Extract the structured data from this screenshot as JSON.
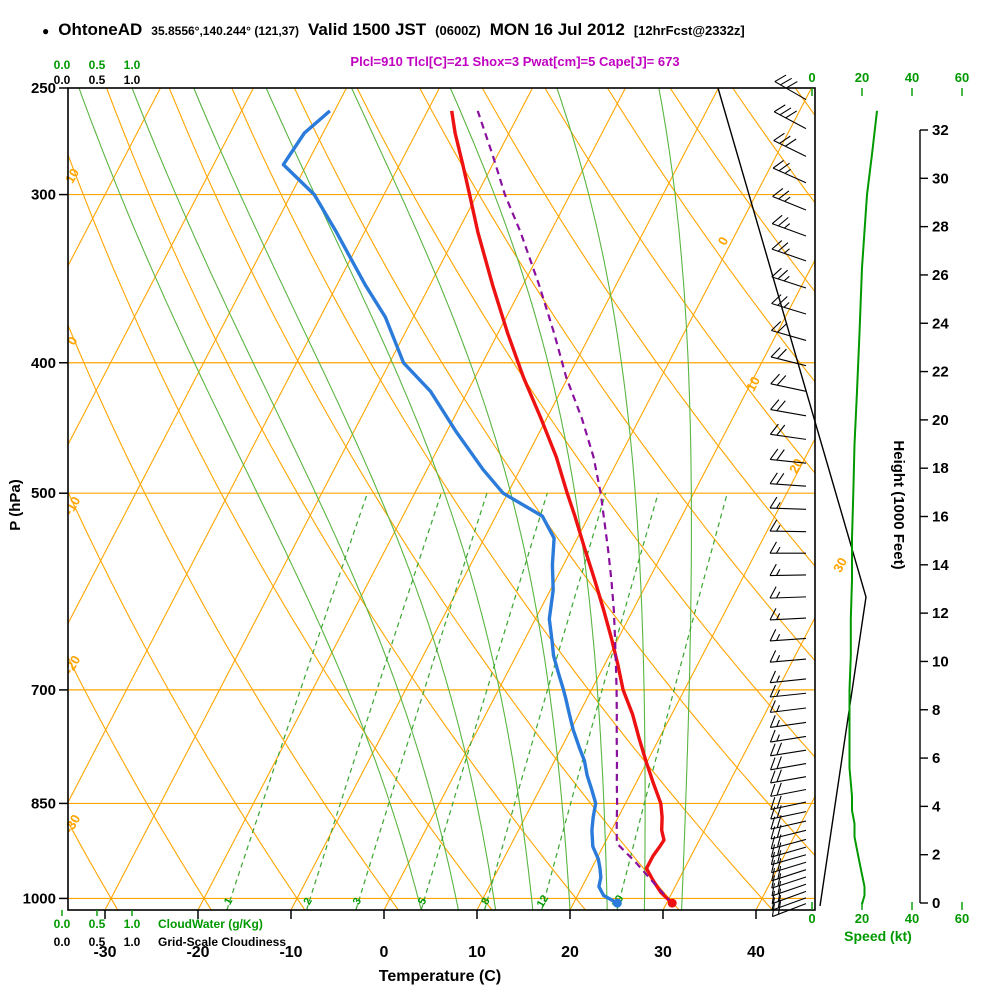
{
  "header": {
    "marker": "●",
    "station": "OhtoneAD",
    "coords": "35.8556°,140.244° (121,37)",
    "valid_label": "Valid 1500 JST",
    "valid_utc": "(0600Z)",
    "valid_date": "MON 16 Jul 2012",
    "forecast_tag": "[12hrFcst@2332z]",
    "indices": "Plcl=910 Tlcl[C]=21 Shox=3 Pwat[cm]=5 Cape[J]= 673"
  },
  "axes": {
    "pressure": {
      "title": "P (hPa)",
      "ticks": [
        250,
        300,
        400,
        500,
        700,
        850,
        1000
      ]
    },
    "temperature": {
      "title": "Temperature (C)",
      "ticks": [
        -30,
        -20,
        -10,
        0,
        10,
        20,
        30,
        40
      ]
    },
    "height": {
      "title": "Height (1000 Feet)",
      "ticks": [
        0,
        2,
        4,
        6,
        8,
        10,
        12,
        14,
        16,
        18,
        20,
        22,
        24,
        26,
        28,
        30,
        32
      ]
    },
    "speed": {
      "title": "Speed (kt)",
      "ticks": [
        0,
        20,
        40,
        60
      ]
    },
    "cloud": {
      "tick_labels": [
        "0.0",
        "0.5",
        "1.0"
      ],
      "green_label": "CloudWater (g/Kg)",
      "black_label": "Grid-Scale Cloudiness"
    }
  },
  "colors": {
    "orange": "#ffa500",
    "green": "#009900",
    "moist": "#5ab542",
    "mixing": "#3aa530",
    "red": "#ee1111",
    "blue": "#2b7bdb",
    "purple": "#8a0f9e",
    "magenta": "#c000c0",
    "black": "#000000"
  },
  "chart_data": {
    "type": "line",
    "variant": "skew-T log-p thermodynamic sounding",
    "pressure_range_hPa": [
      1020,
      250
    ],
    "surface_temp_axis_range_C": [
      -34,
      46
    ],
    "series": [
      {
        "name": "temperature",
        "color_key": "red",
        "width": 3.4,
        "points": [
          [
            1008,
            30.6
          ],
          [
            990,
            28.8
          ],
          [
            970,
            27.3
          ],
          [
            950,
            25.9
          ],
          [
            930,
            25.9
          ],
          [
            915,
            26.1
          ],
          [
            905,
            26.2
          ],
          [
            890,
            25.4
          ],
          [
            870,
            24.7
          ],
          [
            850,
            23.8
          ],
          [
            820,
            21.8
          ],
          [
            790,
            19.8
          ],
          [
            760,
            17.8
          ],
          [
            730,
            15.8
          ],
          [
            700,
            13.4
          ],
          [
            670,
            11.4
          ],
          [
            640,
            9.2
          ],
          [
            610,
            6.8
          ],
          [
            580,
            4.2
          ],
          [
            550,
            1.4
          ],
          [
            520,
            -1.5
          ],
          [
            500,
            -3.6
          ],
          [
            470,
            -6.8
          ],
          [
            440,
            -10.6
          ],
          [
            410,
            -14.8
          ],
          [
            380,
            -19.0
          ],
          [
            350,
            -23.3
          ],
          [
            320,
            -27.8
          ],
          [
            300,
            -30.8
          ],
          [
            285,
            -33.2
          ],
          [
            270,
            -35.8
          ],
          [
            260,
            -37.4
          ]
        ]
      },
      {
        "name": "dewpoint",
        "color_key": "blue",
        "width": 3.4,
        "points": [
          [
            1008,
            24.7
          ],
          [
            995,
            22.8
          ],
          [
            980,
            21.8
          ],
          [
            965,
            21.5
          ],
          [
            950,
            20.9
          ],
          [
            935,
            20.2
          ],
          [
            915,
            18.9
          ],
          [
            890,
            17.9
          ],
          [
            870,
            17.3
          ],
          [
            850,
            16.8
          ],
          [
            830,
            15.6
          ],
          [
            810,
            14.3
          ],
          [
            790,
            13.2
          ],
          [
            775,
            12.1
          ],
          [
            750,
            10.3
          ],
          [
            730,
            9.0
          ],
          [
            710,
            7.7
          ],
          [
            700,
            7.0
          ],
          [
            680,
            5.5
          ],
          [
            660,
            4.0
          ],
          [
            645,
            3.1
          ],
          [
            620,
            1.5
          ],
          [
            590,
            0.3
          ],
          [
            565,
            -1.2
          ],
          [
            540,
            -2.5
          ],
          [
            520,
            -5.0
          ],
          [
            500,
            -10.5
          ],
          [
            480,
            -14.0
          ],
          [
            450,
            -19.0
          ],
          [
            420,
            -24.0
          ],
          [
            400,
            -28.5
          ],
          [
            370,
            -33.0
          ],
          [
            350,
            -37.0
          ],
          [
            320,
            -43.0
          ],
          [
            300,
            -47.5
          ],
          [
            285,
            -52.5
          ],
          [
            270,
            -52.0
          ],
          [
            260,
            -50.5
          ]
        ]
      },
      {
        "name": "parcel",
        "color_key": "purple",
        "width": 2.2,
        "dash": "7 5",
        "points": [
          [
            1008,
            30.6
          ],
          [
            975,
            27.6
          ],
          [
            940,
            24.4
          ],
          [
            910,
            21.3
          ],
          [
            880,
            20.2
          ],
          [
            850,
            19.1
          ],
          [
            820,
            17.9
          ],
          [
            790,
            16.7
          ],
          [
            760,
            15.4
          ],
          [
            730,
            14.1
          ],
          [
            700,
            12.7
          ],
          [
            670,
            11.2
          ],
          [
            640,
            9.6
          ],
          [
            610,
            7.9
          ],
          [
            580,
            6.0
          ],
          [
            550,
            3.9
          ],
          [
            520,
            1.6
          ],
          [
            500,
            0.0
          ],
          [
            470,
            -2.8
          ],
          [
            440,
            -6.2
          ],
          [
            410,
            -10.2
          ],
          [
            380,
            -14.0
          ],
          [
            350,
            -18.3
          ],
          [
            320,
            -23.2
          ],
          [
            300,
            -27.0
          ],
          [
            280,
            -30.6
          ],
          [
            260,
            -34.6
          ]
        ]
      }
    ],
    "surface_dots": [
      {
        "name": "surface-temp-dot",
        "color_key": "red",
        "p": 1008,
        "v": 30.6
      },
      {
        "name": "surface-dewpoint-dot",
        "color_key": "blue",
        "p": 1008,
        "v": 24.7
      }
    ],
    "speed_profile_kt": [
      [
        1010,
        20
      ],
      [
        995,
        21
      ],
      [
        980,
        21
      ],
      [
        960,
        20
      ],
      [
        940,
        19
      ],
      [
        920,
        18
      ],
      [
        900,
        17
      ],
      [
        880,
        17
      ],
      [
        860,
        16
      ],
      [
        840,
        16
      ],
      [
        820,
        15.5
      ],
      [
        800,
        15
      ],
      [
        760,
        15
      ],
      [
        720,
        15
      ],
      [
        700,
        15
      ],
      [
        660,
        15.5
      ],
      [
        620,
        15.5
      ],
      [
        580,
        16
      ],
      [
        540,
        16
      ],
      [
        500,
        16.5
      ],
      [
        460,
        17
      ],
      [
        420,
        18
      ],
      [
        380,
        19
      ],
      [
        340,
        20
      ],
      [
        300,
        22
      ],
      [
        280,
        24
      ],
      [
        260,
        26
      ]
    ],
    "wind_barbs": [
      [
        255,
        300,
        30
      ],
      [
        268,
        298,
        28
      ],
      [
        281,
        296,
        28
      ],
      [
        294,
        294,
        27
      ],
      [
        308,
        292,
        26
      ],
      [
        322,
        290,
        25
      ],
      [
        336,
        289,
        25
      ],
      [
        352,
        288,
        24
      ],
      [
        368,
        287,
        23
      ],
      [
        385,
        286,
        22
      ],
      [
        402,
        284,
        21
      ],
      [
        420,
        282,
        20
      ],
      [
        438,
        280,
        20
      ],
      [
        456,
        278,
        19
      ],
      [
        475,
        276,
        18
      ],
      [
        494,
        274,
        18
      ],
      [
        514,
        272,
        17
      ],
      [
        534,
        271,
        17
      ],
      [
        554,
        270,
        16
      ],
      [
        575,
        269,
        16
      ],
      [
        597,
        268,
        15
      ],
      [
        619,
        267,
        15
      ],
      [
        641,
        266,
        15
      ],
      [
        664,
        265,
        16
      ],
      [
        687,
        264,
        16
      ],
      [
        704,
        264,
        16
      ],
      [
        722,
        263,
        17
      ],
      [
        740,
        262,
        17
      ],
      [
        758,
        261,
        17
      ],
      [
        776,
        261,
        18
      ],
      [
        794,
        260,
        18
      ],
      [
        812,
        260,
        18
      ],
      [
        830,
        259,
        19
      ],
      [
        848,
        258,
        19
      ],
      [
        862,
        258,
        20
      ],
      [
        876,
        257,
        20
      ],
      [
        890,
        256,
        20
      ],
      [
        904,
        255,
        21
      ],
      [
        916,
        254,
        21
      ],
      [
        928,
        254,
        21
      ],
      [
        940,
        253,
        22
      ],
      [
        952,
        252,
        22
      ],
      [
        964,
        252,
        22
      ],
      [
        976,
        251,
        21
      ],
      [
        988,
        250,
        21
      ],
      [
        999,
        250,
        20
      ],
      [
        1009,
        249,
        20
      ]
    ],
    "grid": {
      "isobars": [
        300,
        400,
        500,
        700,
        850,
        1000
      ],
      "isotherms": {
        "min": -80,
        "max": 40,
        "step": 10
      },
      "dry_adiabats": {
        "min": -60,
        "max": 140,
        "step": 10
      },
      "moist_adiabats": [
        4,
        8,
        12,
        16,
        20,
        24,
        28,
        32
      ],
      "mixing_ratio_gkg": [
        1,
        2,
        3,
        5,
        8,
        12,
        20
      ]
    },
    "labels": {
      "dry_adiabats_left": [
        {
          "v": "10",
          "y": 178
        },
        {
          "v": "0",
          "y": 343
        },
        {
          "v": "-10",
          "y": 508
        },
        {
          "v": "-20",
          "y": 667
        },
        {
          "v": "-30",
          "y": 826
        }
      ],
      "isotherms_right": [
        {
          "v": "0",
          "x": 727,
          "y": 243
        },
        {
          "v": "10",
          "x": 757,
          "y": 386
        },
        {
          "v": "20",
          "x": 800,
          "y": 468
        },
        {
          "v": "30",
          "x": 844,
          "y": 567
        }
      ]
    }
  }
}
